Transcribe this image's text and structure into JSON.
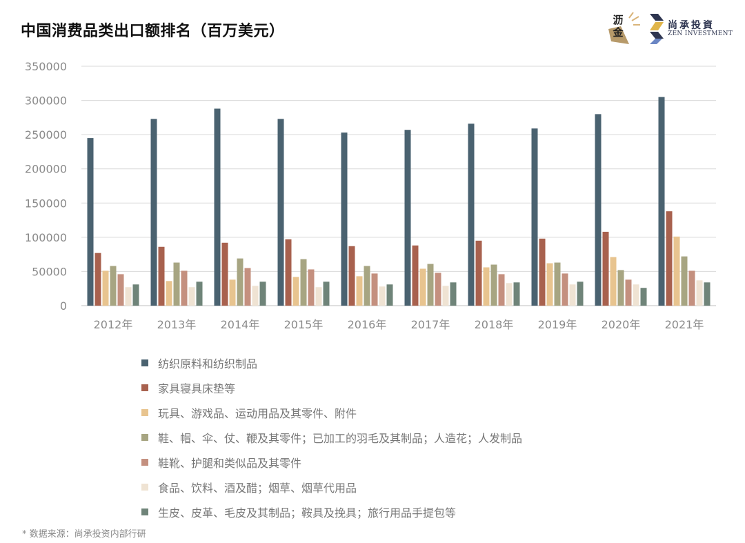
{
  "title": "中国消费品类出口额排名（百万美元）",
  "logos": {
    "left_text": "沥金",
    "right_cn": "尚承投資",
    "right_en": "ZEN INVESTMENT"
  },
  "footnote": "* 数据来源：尚承投资内部行研",
  "chart_data": {
    "type": "bar",
    "categories": [
      "2012年",
      "2013年",
      "2014年",
      "2015年",
      "2016年",
      "2017年",
      "2018年",
      "2019年",
      "2020年",
      "2021年"
    ],
    "ylim": [
      0,
      350000
    ],
    "yticks": [
      "0",
      "50000",
      "100000",
      "150000",
      "200000",
      "250000",
      "300000",
      "350000"
    ],
    "ytick_values": [
      0,
      50000,
      100000,
      150000,
      200000,
      250000,
      300000,
      350000
    ],
    "grid": true,
    "legend_position": "bottom",
    "series": [
      {
        "name": "纺织原料和纺织制品",
        "color": "#4a6270",
        "values": [
          245000,
          273000,
          288000,
          273000,
          253000,
          257000,
          266000,
          259000,
          280000,
          305000
        ]
      },
      {
        "name": "家具寝具床垫等",
        "color": "#a8614e",
        "values": [
          77000,
          86000,
          92000,
          97000,
          87000,
          88000,
          95000,
          98000,
          108000,
          138000
        ]
      },
      {
        "name": "玩具、游戏品、运动用品及其零件、附件",
        "color": "#e8c48f",
        "values": [
          51000,
          36000,
          38000,
          42000,
          43000,
          54000,
          56000,
          62000,
          71000,
          101000
        ]
      },
      {
        "name": "鞋、帽、伞、仗、鞭及其零件；已加工的羽毛及其制品；人造花；人发制品",
        "color": "#a7a582",
        "values": [
          58000,
          63000,
          69000,
          68000,
          58000,
          61000,
          60000,
          63000,
          52000,
          72000
        ]
      },
      {
        "name": "鞋靴、护腿和类似品及其零件",
        "color": "#c4907f",
        "values": [
          46000,
          51000,
          55000,
          53000,
          47000,
          48000,
          46000,
          47000,
          38000,
          51000
        ]
      },
      {
        "name": "食品、饮料、酒及醋；烟草、烟草代用品",
        "color": "#efe3d3",
        "values": [
          27000,
          27000,
          29000,
          27000,
          28000,
          29000,
          33000,
          31000,
          31000,
          37000
        ]
      },
      {
        "name": "生皮、皮革、毛皮及其制品；鞍具及挽具；旅行用品手提包等",
        "color": "#6f8479",
        "values": [
          31000,
          35000,
          35000,
          35000,
          31000,
          34000,
          34000,
          35000,
          26000,
          34000
        ]
      }
    ]
  }
}
